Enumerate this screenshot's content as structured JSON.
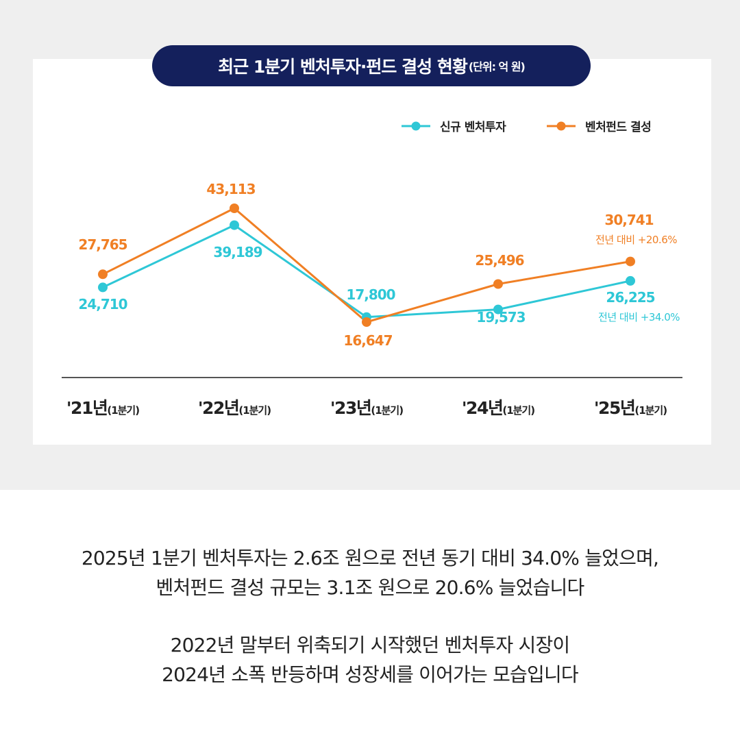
{
  "title": {
    "main": "최근 1분기 벤처투자·펀드 결성 현황",
    "unit": "(단위: 억 원)"
  },
  "colors": {
    "investment": "#2ec7d6",
    "fund": "#f07f24",
    "title_bg": "#14205c",
    "axis": "#555555"
  },
  "chart_data": {
    "type": "line",
    "categories": [
      {
        "year": "'21년",
        "period": "(1분기)"
      },
      {
        "year": "'22년",
        "period": "(1분기)"
      },
      {
        "year": "'23년",
        "period": "(1분기)"
      },
      {
        "year": "'24년",
        "period": "(1분기)"
      },
      {
        "year": "'25년",
        "period": "(1분기)"
      }
    ],
    "series": [
      {
        "key": "investment",
        "name": "신규 벤처투자",
        "values": [
          24710,
          39189,
          17800,
          19573,
          26225
        ],
        "labels": [
          "24,710",
          "39,189",
          "17,800",
          "19,573",
          "26,225"
        ],
        "last_note": "전년 대비 +34.0%"
      },
      {
        "key": "fund",
        "name": "벤처펀드 결성",
        "values": [
          27765,
          43113,
          16647,
          25496,
          30741
        ],
        "labels": [
          "27,765",
          "43,113",
          "16,647",
          "25,496",
          "30,741"
        ],
        "last_note": "전년 대비 +20.6%"
      }
    ],
    "legend_position": "top-right",
    "grid": false
  },
  "caption": {
    "p1_line1": "2025년 1분기 벤처투자는 2.6조 원으로 전년 동기 대비 34.0% 늘었으며,",
    "p1_line2": "벤처펀드 결성 규모는 3.1조 원으로 20.6% 늘었습니다",
    "p2_line1": "2022년 말부터 위축되기 시작했던 벤처투자 시장이",
    "p2_line2": "2024년 소폭 반등하며 성장세를 이어가는 모습입니다"
  }
}
